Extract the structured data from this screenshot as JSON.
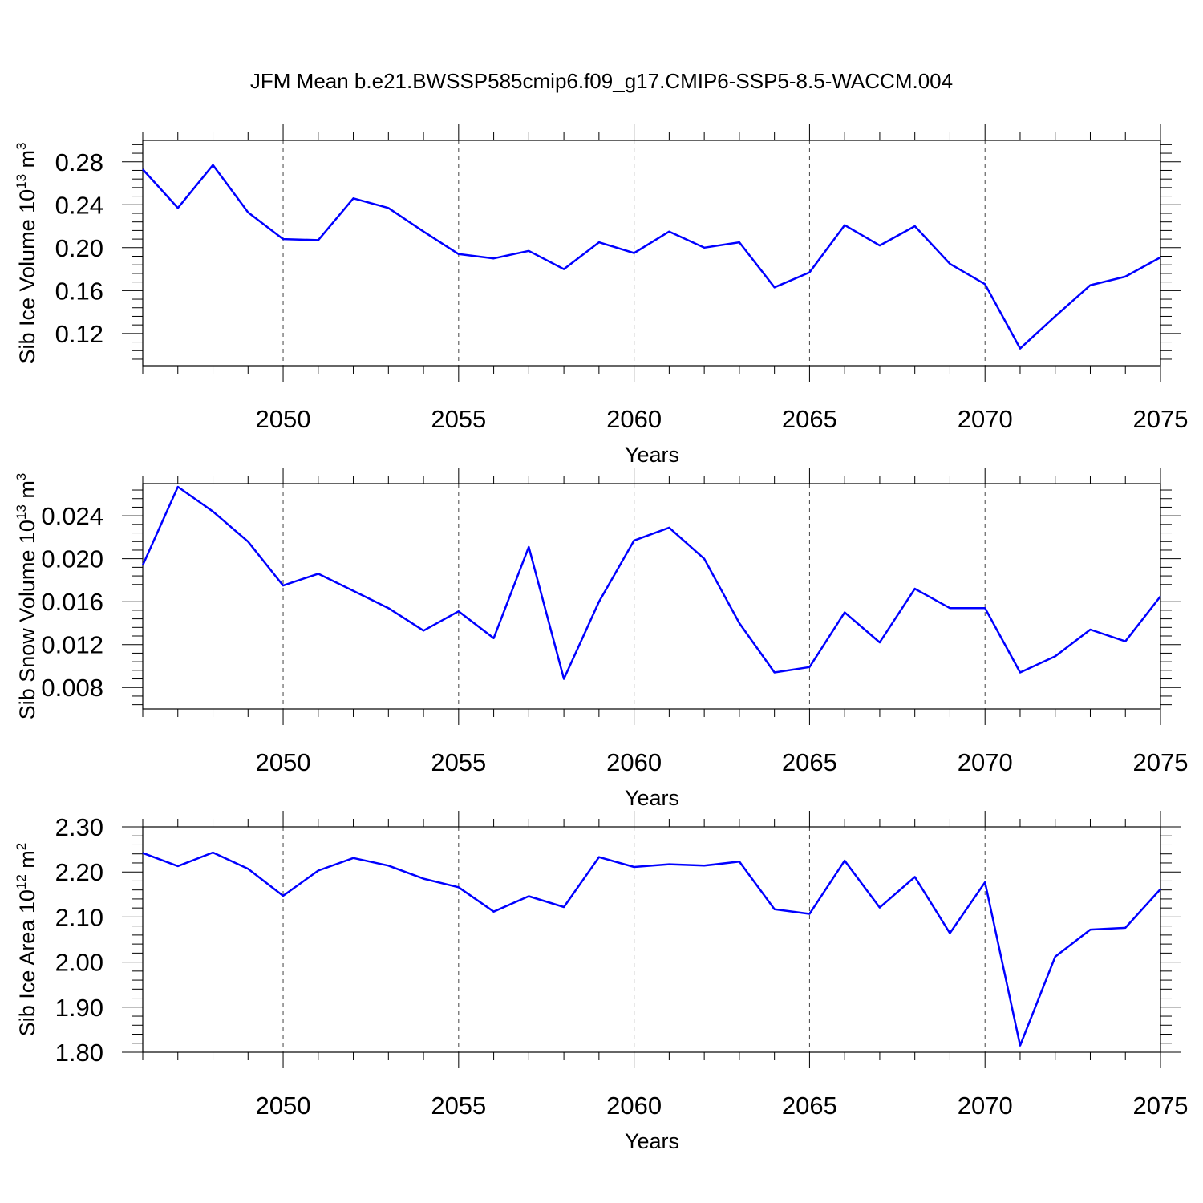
{
  "title": "JFM Mean b.e21.BWSSP585cmip6.f09_g17.CMIP6-SSP5-8.5-WACCM.004",
  "line_color": "#0000ff",
  "chart_data": [
    {
      "type": "line",
      "name": "ice-volume",
      "xlabel": "Years",
      "ylabel": "Sib Ice Volume 10",
      "ylabel_exp": "13",
      "ylabel_unit": " m",
      "ylabel_unit_exp": "3",
      "xlim": [
        2046,
        2075
      ],
      "ylim": [
        0.09,
        0.3
      ],
      "xticks": [
        2050,
        2055,
        2060,
        2065,
        2070,
        2075
      ],
      "xtick_labels": [
        "2050",
        "2055",
        "2060",
        "2065",
        "2070",
        "2075"
      ],
      "yticks": [
        0.12,
        0.16,
        0.2,
        0.24,
        0.28
      ],
      "ytick_labels": [
        "0.12",
        "0.16",
        "0.20",
        "0.24",
        "0.28"
      ],
      "x": [
        2046,
        2047,
        2048,
        2049,
        2050,
        2051,
        2052,
        2053,
        2054,
        2055,
        2056,
        2057,
        2058,
        2059,
        2060,
        2061,
        2062,
        2063,
        2064,
        2065,
        2066,
        2067,
        2068,
        2069,
        2070,
        2071,
        2072,
        2073,
        2074,
        2075
      ],
      "y": [
        0.273,
        0.237,
        0.277,
        0.233,
        0.208,
        0.207,
        0.246,
        0.237,
        0.215,
        0.194,
        0.19,
        0.197,
        0.18,
        0.205,
        0.195,
        0.215,
        0.2,
        0.205,
        0.163,
        0.177,
        0.221,
        0.202,
        0.22,
        0.185,
        0.166,
        0.106,
        0.136,
        0.165,
        0.173,
        0.191
      ]
    },
    {
      "type": "line",
      "name": "snow-volume",
      "xlabel": "Years",
      "ylabel": "Sib Snow Volume 10",
      "ylabel_exp": "13",
      "ylabel_unit": " m",
      "ylabel_unit_exp": "3",
      "xlim": [
        2046,
        2075
      ],
      "ylim": [
        0.006,
        0.027
      ],
      "xticks": [
        2050,
        2055,
        2060,
        2065,
        2070,
        2075
      ],
      "xtick_labels": [
        "2050",
        "2055",
        "2060",
        "2065",
        "2070",
        "2075"
      ],
      "yticks": [
        0.008,
        0.012,
        0.016,
        0.02,
        0.024
      ],
      "ytick_labels": [
        "0.008",
        "0.012",
        "0.016",
        "0.020",
        "0.024"
      ],
      "x": [
        2046,
        2047,
        2048,
        2049,
        2050,
        2051,
        2052,
        2053,
        2054,
        2055,
        2056,
        2057,
        2058,
        2059,
        2060,
        2061,
        2062,
        2063,
        2064,
        2065,
        2066,
        2067,
        2068,
        2069,
        2070,
        2071,
        2072,
        2073,
        2074,
        2075
      ],
      "y": [
        0.0194,
        0.0267,
        0.0244,
        0.0216,
        0.0175,
        0.0186,
        0.017,
        0.0154,
        0.0133,
        0.0151,
        0.0126,
        0.0211,
        0.0088,
        0.016,
        0.0217,
        0.0229,
        0.02,
        0.014,
        0.0094,
        0.0099,
        0.015,
        0.0122,
        0.0172,
        0.0154,
        0.0154,
        0.0094,
        0.0109,
        0.0134,
        0.0123,
        0.0165
      ]
    },
    {
      "type": "line",
      "name": "ice-area",
      "xlabel": "Years",
      "ylabel": "Sib Ice Area 10",
      "ylabel_exp": "12",
      "ylabel_unit": " m",
      "ylabel_unit_exp": "2",
      "xlim": [
        2046,
        2075
      ],
      "ylim": [
        1.8,
        2.3
      ],
      "xticks": [
        2050,
        2055,
        2060,
        2065,
        2070,
        2075
      ],
      "xtick_labels": [
        "2050",
        "2055",
        "2060",
        "2065",
        "2070",
        "2075"
      ],
      "yticks": [
        1.8,
        1.9,
        2.0,
        2.1,
        2.2,
        2.3
      ],
      "ytick_labels": [
        "1.80",
        "1.90",
        "2.00",
        "2.10",
        "2.20",
        "2.30"
      ],
      "x": [
        2046,
        2047,
        2048,
        2049,
        2050,
        2051,
        2052,
        2053,
        2054,
        2055,
        2056,
        2057,
        2058,
        2059,
        2060,
        2061,
        2062,
        2063,
        2064,
        2065,
        2066,
        2067,
        2068,
        2069,
        2070,
        2071,
        2072,
        2073,
        2074,
        2075
      ],
      "y": [
        2.242,
        2.213,
        2.243,
        2.207,
        2.147,
        2.203,
        2.231,
        2.214,
        2.185,
        2.166,
        2.112,
        2.146,
        2.122,
        2.233,
        2.211,
        2.217,
        2.214,
        2.223,
        2.117,
        2.107,
        2.225,
        2.121,
        2.189,
        2.064,
        2.177,
        1.815,
        2.012,
        2.072,
        2.076,
        2.162
      ]
    }
  ]
}
